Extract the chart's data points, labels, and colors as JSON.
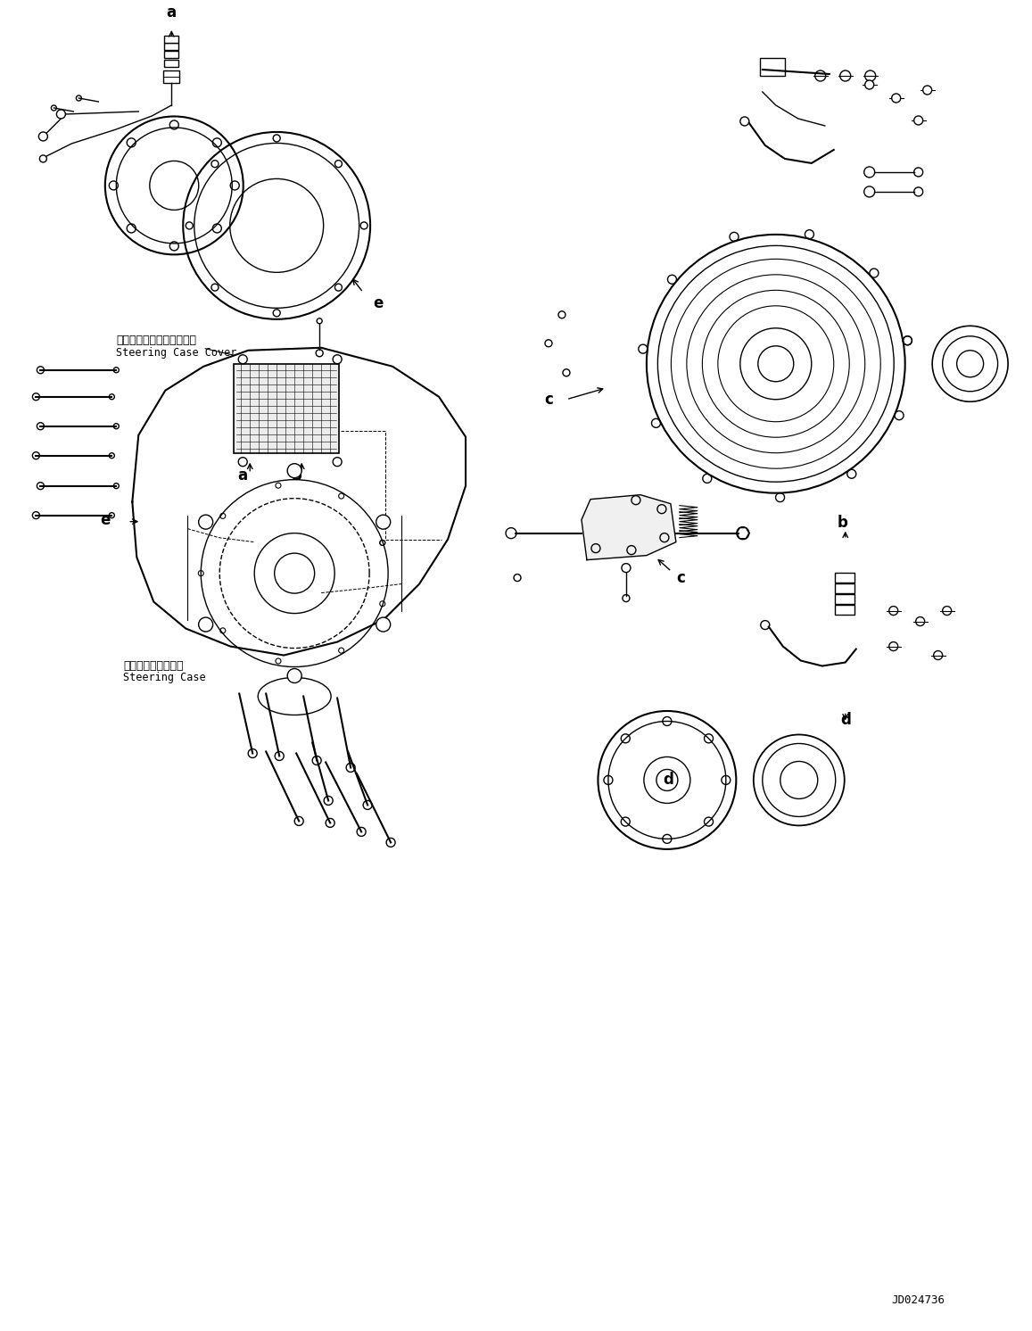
{
  "background_color": "#ffffff",
  "fig_width": 11.57,
  "fig_height": 14.92,
  "dpi": 100,
  "drawing_id": "JD024736",
  "labels": {
    "steering_case_cover_jp": "ステアリングケースカバー",
    "steering_case_cover_en": "Steering Case Cover",
    "steering_case_jp": "ステアリングケース",
    "steering_case_en": "Steering Case"
  },
  "part_labels": [
    "a",
    "b",
    "c",
    "d",
    "e"
  ],
  "line_color": "#000000",
  "text_color": "#000000",
  "font_size_label": 11,
  "font_size_part": 10,
  "font_size_id": 9
}
